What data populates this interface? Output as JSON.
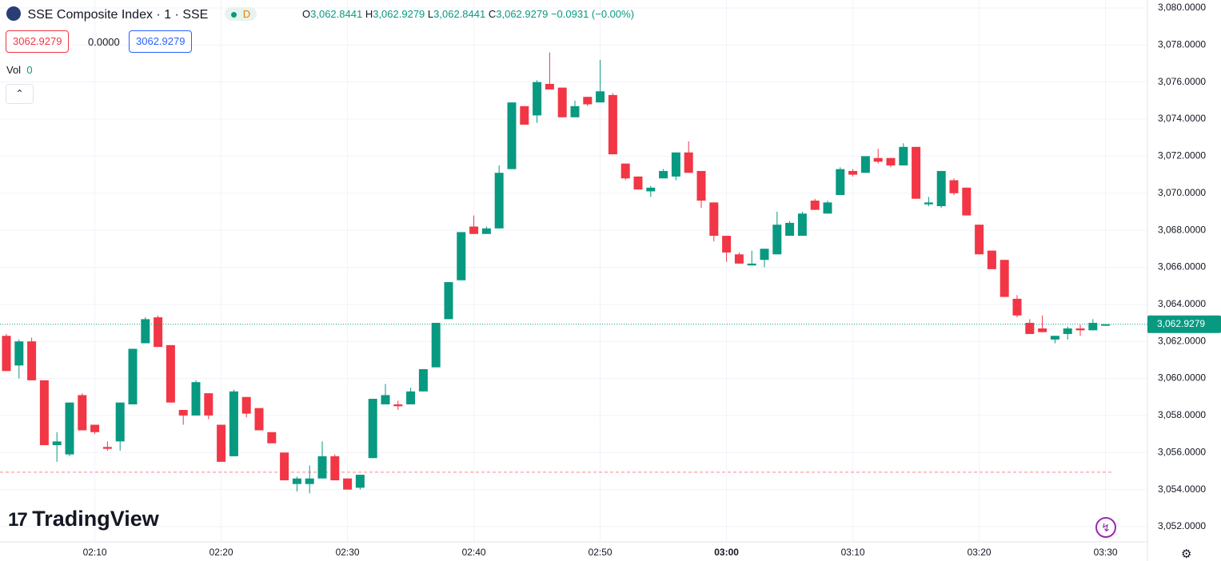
{
  "header": {
    "symbol": "SSE Composite Index · 1 · SSE",
    "badge": "D",
    "ohlc": [
      {
        "key": "O",
        "value": "3,062.8441"
      },
      {
        "key": "H",
        "value": "3,062.9279"
      },
      {
        "key": "L",
        "value": "3,062.8441"
      },
      {
        "key": "C",
        "value": "3,062.9279"
      }
    ],
    "change": "−0.0931 (−0.00%)",
    "sell": "3062.9279",
    "spread": "0.0000",
    "buy": "3062.9279",
    "vol_label": "Vol",
    "vol_value": "0",
    "watermark": "TradingView"
  },
  "chart_data": {
    "type": "candlestick",
    "up_color": "#089981",
    "down_color": "#f23645",
    "grid": true,
    "x": [
      "02:03",
      "02:04",
      "02:05",
      "02:06",
      "02:07",
      "02:08",
      "02:09",
      "02:10",
      "02:11",
      "02:12",
      "02:13",
      "02:14",
      "02:15",
      "02:16",
      "02:17",
      "02:18",
      "02:19",
      "02:20",
      "02:21",
      "02:22",
      "02:23",
      "02:24",
      "02:25",
      "02:26",
      "02:27",
      "02:28",
      "02:29",
      "02:30",
      "02:31",
      "02:32",
      "02:33",
      "02:34",
      "02:35",
      "02:36",
      "02:37",
      "02:38",
      "02:39",
      "02:40",
      "02:41",
      "02:42",
      "02:43",
      "02:44",
      "02:45",
      "02:46",
      "02:47",
      "02:48",
      "02:49",
      "02:50",
      "02:51",
      "02:52",
      "02:53",
      "02:54",
      "02:55",
      "02:56",
      "02:57",
      "02:58",
      "02:59",
      "03:00",
      "03:01",
      "03:02",
      "03:03",
      "03:04",
      "03:05",
      "03:06",
      "03:07",
      "03:08",
      "03:09",
      "03:10",
      "03:11",
      "03:12",
      "03:13",
      "03:14",
      "03:15",
      "03:16",
      "03:17",
      "03:18",
      "03:19",
      "03:20",
      "03:21",
      "03:22",
      "03:23",
      "03:24",
      "03:25",
      "03:26",
      "03:27",
      "03:28",
      "03:29",
      "03:30"
    ],
    "open": [
      3062.3,
      3060.7,
      3062.0,
      3059.9,
      3056.4,
      3055.9,
      3059.1,
      3057.5,
      3056.3,
      3056.6,
      3058.6,
      3061.9,
      3063.3,
      3061.8,
      3058.3,
      3058.0,
      3059.2,
      3057.5,
      3055.8,
      3059.0,
      3058.4,
      3057.1,
      3056.0,
      3054.3,
      3054.3,
      3054.6,
      3055.8,
      3054.6,
      3054.1,
      3055.7,
      3058.6,
      3058.6,
      3058.6,
      3059.3,
      3060.6,
      3063.2,
      3065.3,
      3068.2,
      3067.8,
      3068.1,
      3071.3,
      3074.7,
      3074.2,
      3075.9,
      3075.7,
      3074.1,
      3075.2,
      3074.9,
      3075.3,
      3071.6,
      3070.9,
      3070.1,
      3070.8,
      3070.9,
      3072.2,
      3071.2,
      3069.5,
      3067.7,
      3066.7,
      3066.1,
      3066.4,
      3066.7,
      3067.7,
      3067.7,
      3069.6,
      3068.9,
      3069.9,
      3071.2,
      3071.1,
      3071.9,
      3071.9,
      3071.5,
      3072.5,
      3069.4,
      3069.3,
      3070.7,
      3070.3,
      3068.3,
      3066.9,
      3066.4,
      3064.3,
      3063.0,
      3062.7,
      3062.1,
      3062.4,
      3062.7,
      3062.6,
      3062.8441
    ],
    "high": [
      3062.4,
      3062.1,
      3062.2,
      3059.9,
      3057.1,
      3058.7,
      3059.2,
      3057.5,
      3056.6,
      3058.7,
      3061.6,
      3063.3,
      3063.4,
      3061.8,
      3058.3,
      3059.9,
      3059.2,
      3057.5,
      3059.4,
      3059.0,
      3058.4,
      3057.1,
      3056.0,
      3054.7,
      3055.3,
      3056.6,
      3055.9,
      3054.6,
      3054.8,
      3058.9,
      3059.7,
      3058.8,
      3059.5,
      3060.5,
      3063.0,
      3065.2,
      3067.9,
      3068.8,
      3068.2,
      3071.5,
      3074.9,
      3074.7,
      3076.1,
      3077.6,
      3075.7,
      3075.0,
      3075.2,
      3077.2,
      3075.4,
      3071.6,
      3070.9,
      3070.4,
      3071.3,
      3072.2,
      3072.8,
      3071.2,
      3069.5,
      3067.7,
      3066.8,
      3066.9,
      3067.0,
      3069.0,
      3068.5,
      3069.0,
      3069.7,
      3069.6,
      3071.4,
      3071.3,
      3072.0,
      3072.4,
      3071.9,
      3072.7,
      3072.5,
      3069.8,
      3071.2,
      3070.8,
      3070.3,
      3068.3,
      3066.9,
      3066.4,
      3064.5,
      3063.2,
      3063.4,
      3062.3,
      3062.8,
      3062.9,
      3063.2,
      3062.9279
    ],
    "low": [
      3060.4,
      3060.0,
      3059.9,
      3056.4,
      3055.5,
      3055.8,
      3057.2,
      3057.0,
      3056.1,
      3056.1,
      3058.6,
      3061.9,
      3061.7,
      3058.7,
      3057.5,
      3058.0,
      3057.8,
      3055.5,
      3055.8,
      3057.9,
      3057.2,
      3056.5,
      3054.5,
      3053.9,
      3053.8,
      3054.6,
      3054.5,
      3054.0,
      3054.0,
      3055.7,
      3058.6,
      3058.3,
      3058.6,
      3059.3,
      3060.6,
      3063.2,
      3065.3,
      3067.8,
      3067.8,
      3068.1,
      3071.3,
      3073.7,
      3073.8,
      3075.6,
      3074.1,
      3074.1,
      3074.7,
      3074.9,
      3072.1,
      3070.7,
      3070.2,
      3069.8,
      3070.8,
      3070.7,
      3071.1,
      3069.2,
      3067.4,
      3066.3,
      3066.2,
      3066.1,
      3066.0,
      3066.7,
      3067.7,
      3067.7,
      3069.1,
      3068.9,
      3069.9,
      3070.9,
      3071.1,
      3071.6,
      3071.4,
      3071.5,
      3069.7,
      3069.3,
      3069.2,
      3069.9,
      3068.8,
      3066.7,
      3065.9,
      3064.4,
      3063.3,
      3062.4,
      3062.5,
      3061.9,
      3062.1,
      3062.3,
      3062.6,
      3062.8441
    ],
    "close": [
      3060.4,
      3062.0,
      3059.9,
      3056.4,
      3056.6,
      3058.7,
      3057.2,
      3057.1,
      3056.2,
      3058.7,
      3061.6,
      3063.2,
      3061.7,
      3058.7,
      3058.0,
      3059.8,
      3058.0,
      3055.5,
      3059.3,
      3058.1,
      3057.2,
      3056.5,
      3054.5,
      3054.6,
      3054.6,
      3055.8,
      3054.5,
      3054.0,
      3054.8,
      3058.9,
      3059.1,
      3058.5,
      3059.3,
      3060.5,
      3063.0,
      3065.2,
      3067.9,
      3067.8,
      3068.1,
      3071.1,
      3074.9,
      3073.7,
      3076.0,
      3075.6,
      3074.1,
      3074.7,
      3074.8,
      3075.5,
      3072.1,
      3070.8,
      3070.2,
      3070.3,
      3071.2,
      3072.2,
      3071.1,
      3069.6,
      3067.7,
      3066.8,
      3066.2,
      3066.2,
      3067.0,
      3068.3,
      3068.4,
      3068.9,
      3069.1,
      3069.5,
      3071.3,
      3071.0,
      3072.0,
      3071.7,
      3071.5,
      3072.5,
      3069.7,
      3069.5,
      3071.2,
      3070.0,
      3068.8,
      3066.7,
      3065.9,
      3064.4,
      3063.4,
      3062.4,
      3062.5,
      3062.3,
      3062.7,
      3062.6,
      3063.0,
      3062.9279
    ],
    "xticks": [
      "02:10",
      "02:20",
      "02:30",
      "02:40",
      "02:50",
      "03:00",
      "03:10",
      "03:20",
      "03:30"
    ],
    "ylim": [
      3051.18,
      3080.43
    ],
    "yticks": [
      {
        "value": 3052,
        "label": "3,052.0000"
      },
      {
        "value": 3054,
        "label": "3,054.0000"
      },
      {
        "value": 3056,
        "label": "3,056.0000"
      },
      {
        "value": 3058,
        "label": "3,058.0000"
      },
      {
        "value": 3060,
        "label": "3,060.0000"
      },
      {
        "value": 3062,
        "label": "3,062.0000"
      },
      {
        "value": 3064,
        "label": "3,064.0000"
      },
      {
        "value": 3066,
        "label": "3,066.0000"
      },
      {
        "value": 3068,
        "label": "3,068.0000"
      },
      {
        "value": 3070,
        "label": "3,070.0000"
      },
      {
        "value": 3072,
        "label": "3,072.0000"
      },
      {
        "value": 3074,
        "label": "3,074.0000"
      },
      {
        "value": 3076,
        "label": "3,076.0000"
      },
      {
        "value": 3078,
        "label": "3,078.0000"
      },
      {
        "value": 3080,
        "label": "3,080.0000"
      }
    ],
    "last_price": {
      "value": 3062.9279,
      "label": "3,062.9279"
    },
    "ref_line": 3054.94
  }
}
